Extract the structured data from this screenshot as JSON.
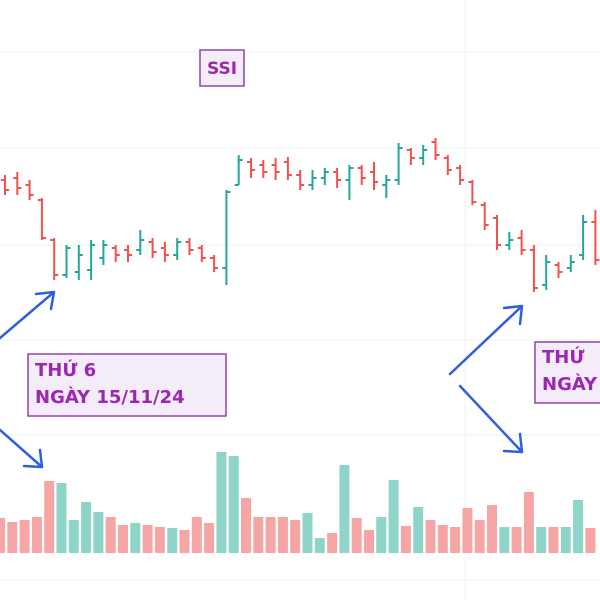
{
  "chart_data": {
    "type": "ohlc",
    "title": "SSI",
    "annotations": [
      {
        "lines": [
          "THỨ 6",
          "NGÀY 15/11/24"
        ]
      },
      {
        "lines": [
          "THỨ",
          "NGÀY"
        ]
      }
    ],
    "up_color": "#26a69a",
    "down_color": "#ef5350",
    "volume_up_color": "#8fd4c9",
    "volume_down_color": "#f6a5a5",
    "ylim": [
      0,
      600
    ],
    "volume_lim": [
      0,
      150
    ],
    "open": [
      420,
      422,
      415,
      400,
      360,
      325,
      328,
      330,
      342,
      352,
      350,
      350,
      358,
      352,
      345,
      358,
      352,
      342,
      332,
      415,
      438,
      435,
      435,
      438,
      425,
      415,
      422,
      428,
      420,
      432,
      428,
      415,
      420,
      450,
      442,
      458,
      442,
      432,
      418,
      395,
      382,
      355,
      362,
      350,
      315,
      335,
      332,
      345,
      378
    ],
    "high": [
      425,
      428,
      420,
      402,
      362,
      355,
      355,
      360,
      360,
      355,
      355,
      370,
      362,
      358,
      362,
      362,
      355,
      345,
      410,
      445,
      442,
      440,
      442,
      443,
      430,
      430,
      432,
      432,
      435,
      435,
      438,
      425,
      457,
      452,
      455,
      462,
      445,
      435,
      420,
      398,
      385,
      368,
      370,
      355,
      345,
      338,
      345,
      385,
      390
    ],
    "low": [
      405,
      405,
      400,
      360,
      320,
      322,
      320,
      320,
      335,
      338,
      338,
      345,
      342,
      338,
      340,
      345,
      338,
      328,
      315,
      415,
      422,
      422,
      420,
      420,
      410,
      410,
      415,
      412,
      400,
      415,
      410,
      402,
      415,
      435,
      435,
      440,
      425,
      415,
      395,
      370,
      350,
      350,
      345,
      308,
      310,
      322,
      328,
      340,
      335
    ],
    "close": [
      410,
      412,
      405,
      362,
      325,
      352,
      345,
      355,
      355,
      345,
      345,
      360,
      348,
      345,
      358,
      350,
      342,
      332,
      408,
      440,
      430,
      428,
      428,
      425,
      415,
      422,
      428,
      420,
      432,
      422,
      418,
      420,
      452,
      442,
      450,
      445,
      430,
      420,
      398,
      375,
      355,
      360,
      350,
      312,
      338,
      328,
      338,
      378,
      340
    ],
    "volume": [
      35,
      31,
      33,
      36,
      72,
      70,
      33,
      51,
      41,
      36,
      28,
      30,
      28,
      26,
      25,
      23,
      36,
      30,
      101,
      97,
      55,
      36,
      36,
      36,
      33,
      40,
      15,
      20,
      88,
      35,
      23,
      36,
      73,
      27,
      46,
      33,
      28,
      26,
      45,
      33,
      48,
      26,
      26,
      61,
      26,
      26,
      26,
      53,
      25
    ]
  }
}
